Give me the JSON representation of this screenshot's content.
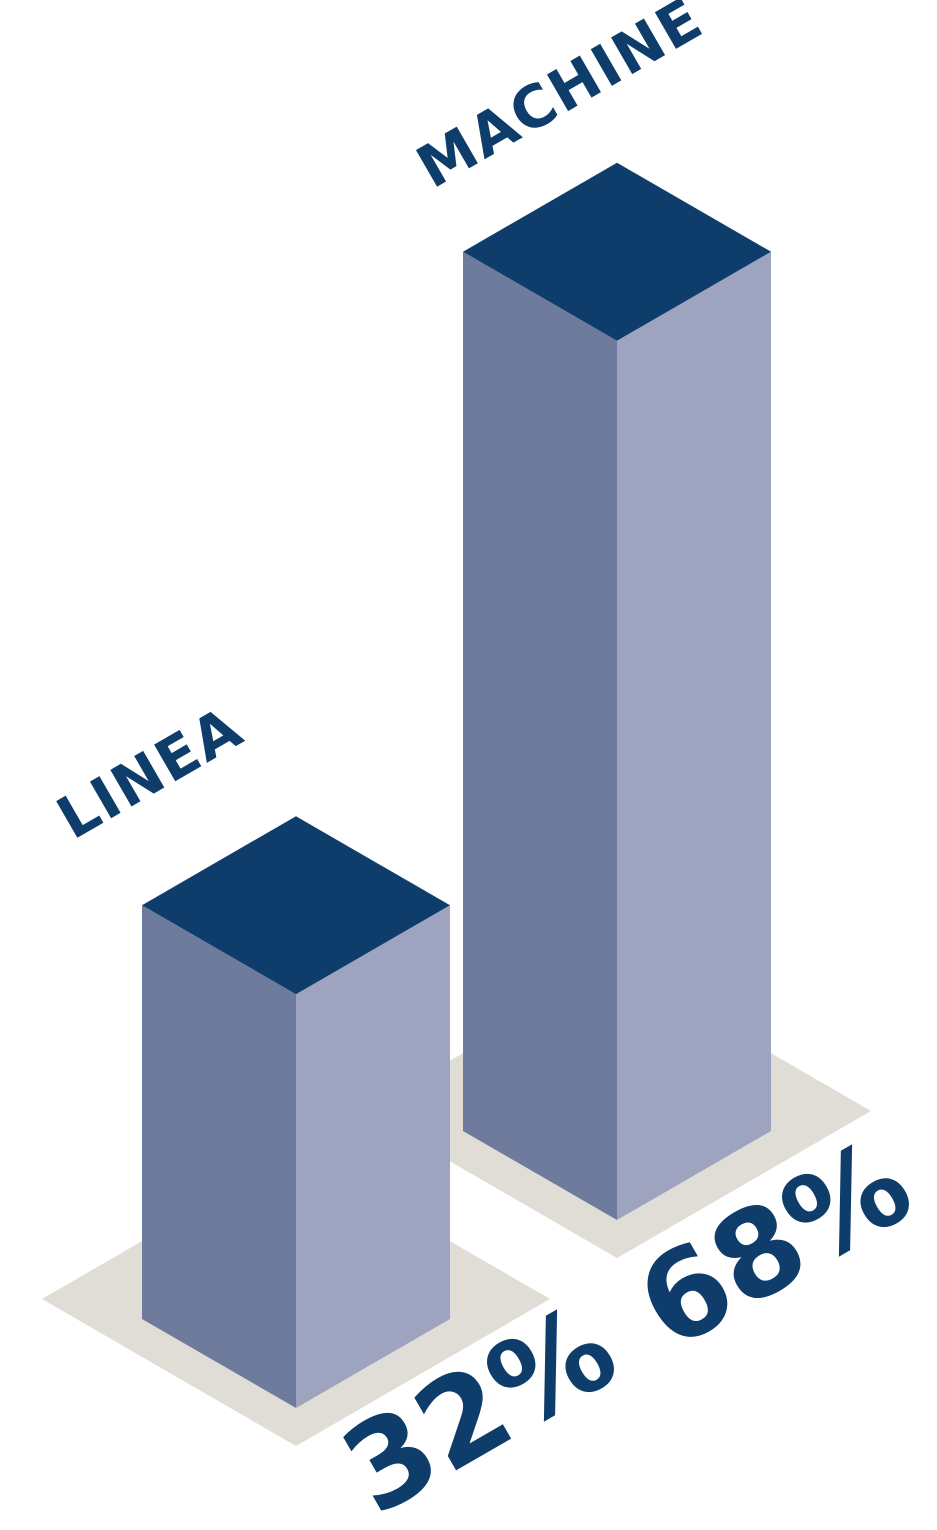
{
  "chart_data": {
    "type": "bar",
    "categories": [
      "LINEA",
      "MACHINE"
    ],
    "values": [
      32,
      68
    ],
    "value_labels": [
      "32%",
      "68%"
    ],
    "unit": "%",
    "title": "",
    "xlabel": "",
    "ylabel": "",
    "ylim": [
      0,
      100
    ],
    "grid": false,
    "style": "3d-isometric"
  },
  "colors": {
    "top_face": "#0e3d6b",
    "left_face": "#6f7b9d",
    "right_face": "#9ea4bf",
    "shadow": "#e0ddd6",
    "text": "#0e3d6b"
  }
}
